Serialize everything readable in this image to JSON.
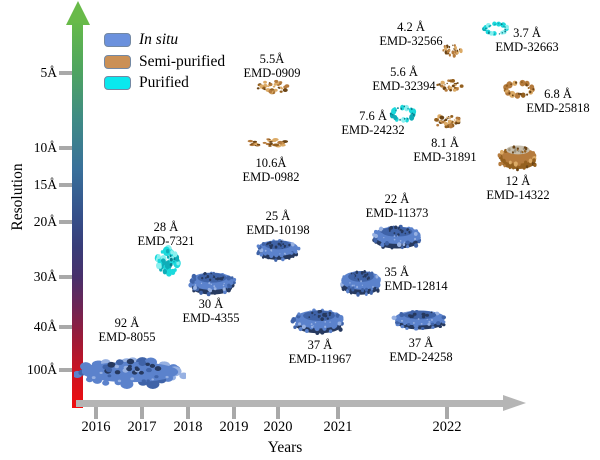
{
  "figure": {
    "y_axis": {
      "label": "Resolution",
      "ticks": [
        "5Å",
        "10Å",
        "15Å",
        "20Å",
        "30Å",
        "40Å",
        "100Å"
      ]
    },
    "x_axis": {
      "label": "Years",
      "ticks": [
        "2016",
        "2017",
        "2018",
        "2019",
        "2020",
        "2021",
        "2022"
      ]
    },
    "legend": {
      "items": [
        {
          "label": "In situ",
          "category": "in-situ",
          "color": "#6b91dd",
          "italic": true
        },
        {
          "label": "Semi-purified",
          "category": "semi-purified",
          "color": "#cb9055",
          "italic": false
        },
        {
          "label": "Purified",
          "category": "purified",
          "color": "#0ae8ee",
          "italic": false
        }
      ]
    }
  },
  "chart_data": {
    "type": "scatter",
    "title": "",
    "xlabel": "Years",
    "ylabel": "Resolution",
    "x_ticks": [
      2016,
      2017,
      2018,
      2019,
      2020,
      2021,
      2022
    ],
    "y_ticks_angstrom": [
      5,
      10,
      15,
      20,
      30,
      40,
      100
    ],
    "y_axis_note": "nonlinear resolution scale, better resolution toward top",
    "y_axis_gradient": [
      "#65b94a",
      "#3f8b85",
      "#35508a",
      "#6f2454",
      "#f00d0e"
    ],
    "axis_color": "#b5b5b5",
    "legend_position": "top-left",
    "category_colors": {
      "in-situ": "#5b82cc",
      "semi-purified": "#b57b3d",
      "purified": "#1bd9dc"
    },
    "points": [
      {
        "emd": "EMD-8055",
        "resolution_label": "92 Å",
        "resolution_angstrom": 92,
        "year": 2016.7,
        "category": "in-situ"
      },
      {
        "emd": "EMD-7321",
        "resolution_label": "28 Å",
        "resolution_angstrom": 28,
        "year": 2017.6,
        "category": "purified"
      },
      {
        "emd": "EMD-4355",
        "resolution_label": "30 Å",
        "resolution_angstrom": 30,
        "year": 2018.5,
        "category": "in-situ"
      },
      {
        "emd": "EMD-0909",
        "resolution_label": "5.5Å",
        "resolution_angstrom": 5.5,
        "year": 2019.9,
        "category": "semi-purified"
      },
      {
        "emd": "EMD-0982",
        "resolution_label": "10.6Å",
        "resolution_angstrom": 10.6,
        "year": 2019.8,
        "category": "semi-purified"
      },
      {
        "emd": "EMD-10198",
        "resolution_label": "25 Å",
        "resolution_angstrom": 25,
        "year": 2020.0,
        "category": "in-situ"
      },
      {
        "emd": "EMD-11967",
        "resolution_label": "37 Å",
        "resolution_angstrom": 37,
        "year": 2020.7,
        "category": "in-situ"
      },
      {
        "emd": "EMD-11373",
        "resolution_label": "22 Å",
        "resolution_angstrom": 22,
        "year": 2021.5,
        "category": "in-situ"
      },
      {
        "emd": "EMD-24232",
        "resolution_label": "7.6 Å",
        "resolution_angstrom": 7.6,
        "year": 2021.6,
        "category": "purified"
      },
      {
        "emd": "EMD-32566",
        "resolution_label": "4.2 Å",
        "resolution_angstrom": 4.2,
        "year": 2022.0,
        "category": "semi-purified"
      },
      {
        "emd": "EMD-32394",
        "resolution_label": "5.6 Å",
        "resolution_angstrom": 5.6,
        "year": 2022.0,
        "category": "semi-purified"
      },
      {
        "emd": "EMD-31891",
        "resolution_label": "8.1 Å",
        "resolution_angstrom": 8.1,
        "year": 2022.0,
        "category": "semi-purified"
      },
      {
        "emd": "EMD-12814",
        "resolution_label": "35 Å",
        "resolution_angstrom": 35,
        "year": 2021.2,
        "category": "in-situ"
      },
      {
        "emd": "EMD-24258",
        "resolution_label": "37 Å",
        "resolution_angstrom": 37,
        "year": 2021.8,
        "category": "in-situ"
      },
      {
        "emd": "EMD-32663",
        "resolution_label": "3.7 Å",
        "resolution_angstrom": 3.7,
        "year": 2022.4,
        "category": "purified"
      },
      {
        "emd": "EMD-25818",
        "resolution_label": "6.8 Å",
        "resolution_angstrom": 6.8,
        "year": 2022.7,
        "category": "semi-purified"
      },
      {
        "emd": "EMD-14322",
        "resolution_label": "12 Å",
        "resolution_angstrom": 12,
        "year": 2022.7,
        "category": "semi-purified"
      }
    ]
  }
}
